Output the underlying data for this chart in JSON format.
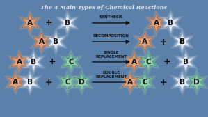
{
  "title": "The 4 Main Types of Chemical Reactions",
  "background_color": "#5b80aa",
  "title_color": "#e8eef8",
  "title_fontsize": 5.8,
  "rows": [
    {
      "label": "SYNTHESIS",
      "label_multiline": false,
      "left": [
        {
          "letters": [
            "A"
          ],
          "colors": [
            "orange"
          ]
        },
        {
          "letters": [
            "B"
          ],
          "colors": [
            "white"
          ]
        }
      ],
      "left_plus": true,
      "right": [
        {
          "letters": [
            "A",
            "B"
          ],
          "colors": [
            "orange",
            "white"
          ]
        }
      ],
      "right_plus": false
    },
    {
      "label": "DECOMPOSITION",
      "label_multiline": false,
      "left": [
        {
          "letters": [
            "A",
            "B"
          ],
          "colors": [
            "orange",
            "white"
          ]
        }
      ],
      "left_plus": false,
      "right": [
        {
          "letters": [
            "A"
          ],
          "colors": [
            "orange"
          ]
        },
        {
          "letters": [
            "B"
          ],
          "colors": [
            "white"
          ]
        }
      ],
      "right_plus": true
    },
    {
      "label": "SINGLE\nREPLACEMENT",
      "label_multiline": true,
      "left": [
        {
          "letters": [
            "A",
            "B"
          ],
          "colors": [
            "orange",
            "white"
          ]
        },
        {
          "letters": [
            "C"
          ],
          "colors": [
            "green"
          ]
        }
      ],
      "left_plus": true,
      "right": [
        {
          "letters": [
            "A",
            "C"
          ],
          "colors": [
            "orange",
            "green"
          ]
        },
        {
          "letters": [
            "B"
          ],
          "colors": [
            "white"
          ]
        }
      ],
      "right_plus": true
    },
    {
      "label": "DOUBLE\nREPLACEMENT",
      "label_multiline": true,
      "left": [
        {
          "letters": [
            "A",
            "B"
          ],
          "colors": [
            "orange",
            "white"
          ]
        },
        {
          "letters": [
            "C",
            "D"
          ],
          "colors": [
            "green",
            "green"
          ]
        }
      ],
      "left_plus": true,
      "right": [
        {
          "letters": [
            "A",
            "C"
          ],
          "colors": [
            "orange",
            "green"
          ]
        },
        {
          "letters": [
            "B",
            "D"
          ],
          "colors": [
            "white",
            "green"
          ]
        }
      ],
      "right_plus": true
    }
  ],
  "color_map": {
    "orange": {
      "fill": "#e0956a",
      "edge": "#b05820",
      "glow": "#f0c090"
    },
    "white": {
      "fill": "#dce8f4",
      "edge": "#8899bb",
      "glow": "#eef4fc"
    },
    "green": {
      "fill": "#7ec8a0",
      "edge": "#3a8858",
      "glow": "#b0e8c8"
    }
  },
  "arrow_color": "#111111",
  "plus_color": "#111111",
  "label_color": "#111111"
}
